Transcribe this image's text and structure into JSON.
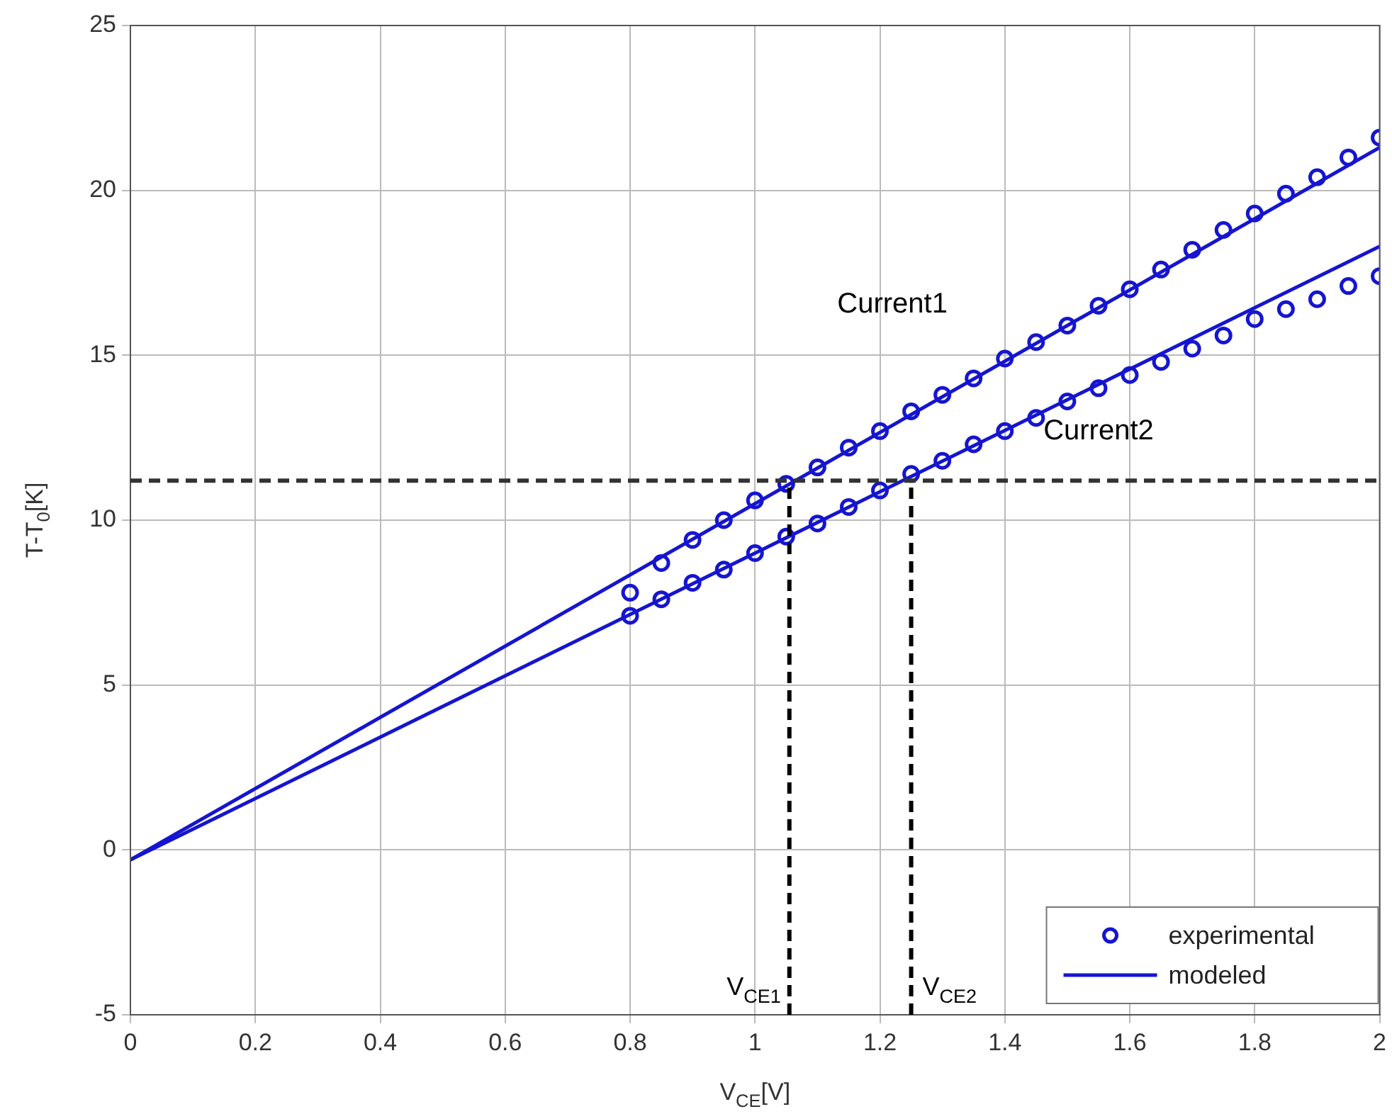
{
  "chart_data": {
    "type": "scatter",
    "xlabel": "V$_{CE}$[V]",
    "ylabel": "T-T$_{0}$[K]",
    "xlim": [
      0,
      2
    ],
    "xticks": [
      0,
      0.2,
      0.4,
      0.6,
      0.8,
      1,
      1.2,
      1.4,
      1.6,
      1.8,
      2
    ],
    "ylim": [
      -5,
      25
    ],
    "yticks": [
      -5,
      0,
      5,
      10,
      15,
      20,
      25
    ],
    "grid": true,
    "legend": "bottom right",
    "series": [
      {
        "type": "scatter",
        "name": "experimental",
        "color": "#1515d0",
        "marker": "circle",
        "x": [
          0.8,
          0.85,
          0.9,
          0.95,
          1.0,
          1.05,
          1.1,
          1.15,
          1.2,
          1.25,
          1.3,
          1.35,
          1.4,
          1.45,
          1.5,
          1.55,
          1.6,
          1.65,
          1.7,
          1.75,
          1.8,
          1.85,
          1.9,
          1.95,
          2.0
        ],
        "values": [
          7.8,
          8.7,
          9.4,
          10.0,
          10.6,
          11.1,
          11.6,
          12.2,
          12.7,
          13.3,
          13.8,
          14.3,
          14.9,
          15.4,
          15.9,
          16.5,
          17.0,
          17.6,
          18.2,
          18.8,
          19.3,
          19.9,
          20.4,
          21.0,
          21.6
        ]
      },
      {
        "type": "scatter",
        "color": "#1515d0",
        "marker": "circle",
        "x": [
          0.8,
          0.85,
          0.9,
          0.95,
          1.0,
          1.05,
          1.1,
          1.15,
          1.2,
          1.25,
          1.3,
          1.35,
          1.4,
          1.45,
          1.5,
          1.55,
          1.6,
          1.65,
          1.7,
          1.75,
          1.8,
          1.85,
          1.9,
          1.95,
          2.0
        ],
        "values": [
          7.1,
          7.6,
          8.1,
          8.5,
          9.0,
          9.5,
          9.9,
          10.4,
          10.9,
          11.4,
          11.8,
          12.3,
          12.7,
          13.1,
          13.6,
          14.0,
          14.4,
          14.8,
          15.2,
          15.6,
          16.1,
          16.4,
          16.7,
          17.1,
          17.4
        ]
      },
      {
        "type": "line",
        "name": "modeled",
        "color": "#1515d0",
        "line_style": "solid",
        "x": [
          0,
          2
        ],
        "values": [
          -0.3,
          21.3
        ]
      },
      {
        "type": "line",
        "color": "#1515d0",
        "line_style": "solid",
        "x": [
          0,
          2
        ],
        "values": [
          -0.3,
          18.3
        ]
      }
    ],
    "ref_lines": [
      {
        "axis": "y",
        "value": 11.2,
        "color": "#333333",
        "line_style": "dashed"
      },
      {
        "axis": "x",
        "value": 1.055,
        "label": "V$_{CE1}$",
        "color": "#000000",
        "line_style": "dashed"
      },
      {
        "axis": "x",
        "value": 1.25,
        "label": "V$_{CE2}$",
        "color": "#000000",
        "line_style": "dashed"
      }
    ],
    "annotations": [
      "Current1",
      "Current2"
    ]
  }
}
